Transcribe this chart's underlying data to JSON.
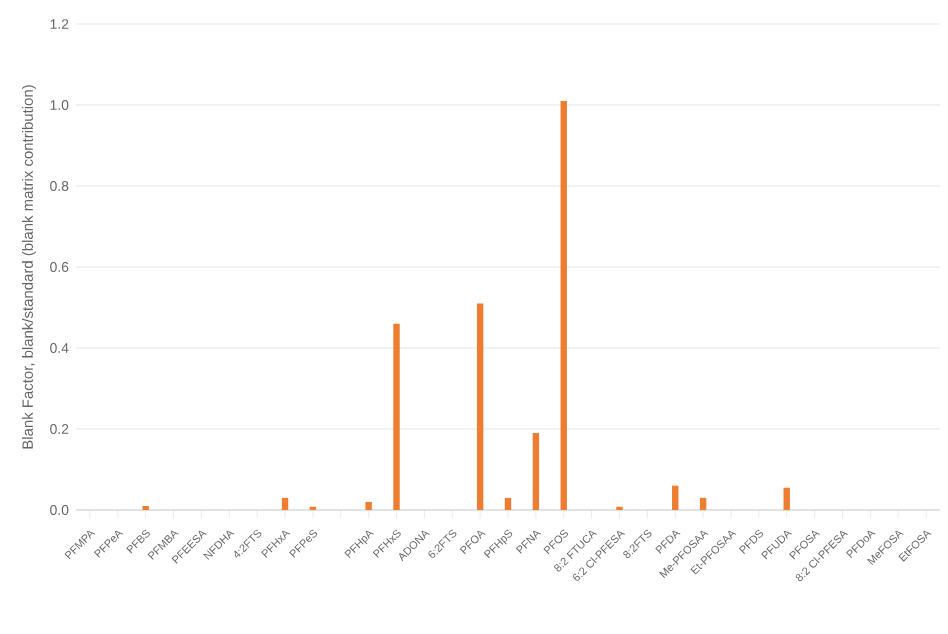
{
  "chart_data": {
    "type": "bar",
    "ylabel": "Blank Factor, blank/standard (blank matrix contribution)",
    "categories": [
      "PFMPA",
      "PFPeA",
      "PFBS",
      "PFMBA",
      "PFEESA",
      "NFDHA",
      "4:2FTS",
      "PFHxA",
      "PFPeS",
      null,
      "PFHpA",
      "PFHxS",
      "ADONA",
      "6:2FTS",
      "PFOA",
      "PFHpS",
      "PFNA",
      "PFOS",
      "8:2 FTUCA",
      "6:2 Cl-PFESA",
      "8:2FTS",
      "PFDA",
      "Me-PFOSAA",
      "Et-PFOSAA",
      "PFDS",
      "PFUDA",
      "PFOSA",
      "8:2 Cl-PFESA",
      "PFDoA",
      "MeFOSA",
      "EtFOSA"
    ],
    "values": [
      0,
      0,
      0.01,
      0,
      0,
      0,
      0,
      0.03,
      0.008,
      0,
      0.02,
      0.46,
      0,
      0,
      0.51,
      0.03,
      0.19,
      1.01,
      0,
      0.008,
      0,
      0.06,
      0.03,
      0,
      0,
      0.055,
      0,
      0,
      0,
      0,
      0
    ],
    "color": "#ed7d31",
    "ylim": [
      0,
      1.2
    ],
    "yticks": [
      {
        "value": 0,
        "label": "0.0"
      },
      {
        "value": 0.2,
        "label": "0.2"
      },
      {
        "value": 0.4,
        "label": "0.4"
      },
      {
        "value": 0.6,
        "label": "0.6"
      },
      {
        "value": 0.8,
        "label": "0.8"
      },
      {
        "value": 1,
        "label": "1.0"
      },
      {
        "value": 1.2,
        "label": "1.2"
      }
    ],
    "grid": "y"
  }
}
